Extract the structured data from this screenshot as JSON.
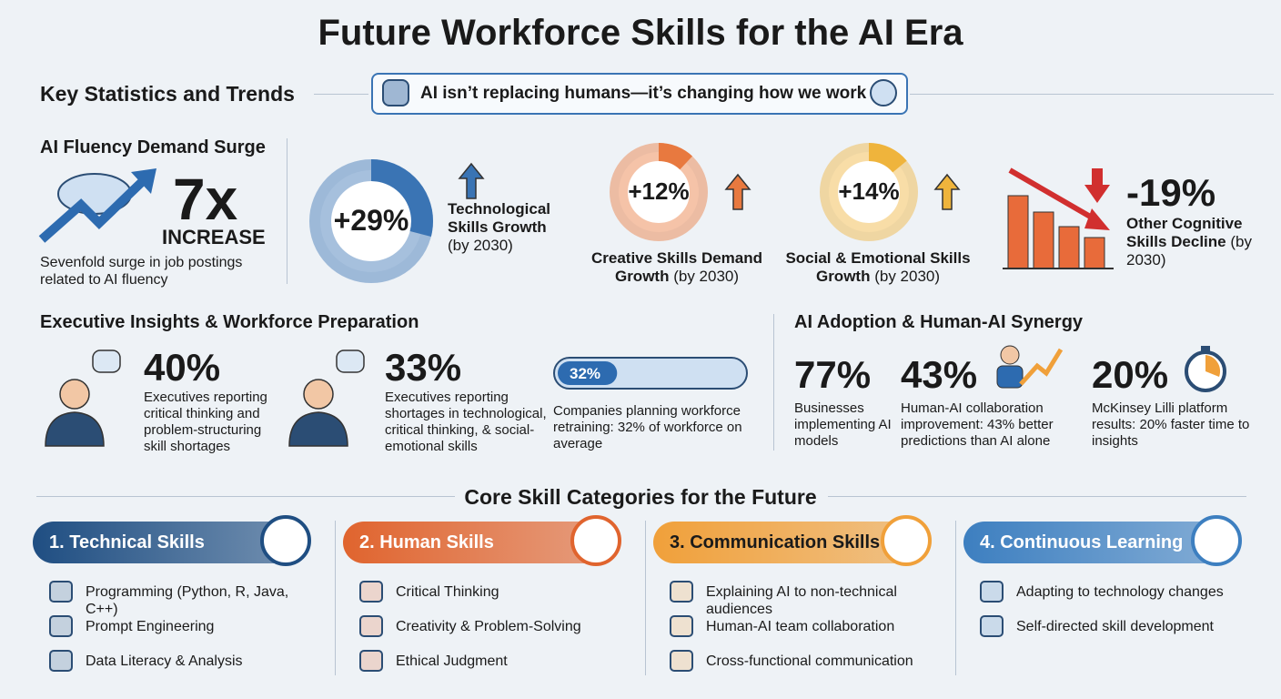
{
  "title": "Future Workforce Skills for the AI Era",
  "stats_heading": "Key Statistics and Trends",
  "banner": "AI isn’t replacing humans—it’s changing how we work",
  "fluency": {
    "heading": "AI Fluency Demand Surge",
    "stat": "7x",
    "stat_label": "INCREASE",
    "description": "Sevenfold surge in job postings related to AI fluency"
  },
  "growth": [
    {
      "value": 29,
      "label": "+29%",
      "name": "Technological Skills Growth",
      "note": "(by 2030)",
      "color": "#3a74b4"
    },
    {
      "value": 12,
      "label": "+12%",
      "name": "Creative Skills Demand Growth",
      "note": "(by 2030)",
      "color": "#e8793f"
    },
    {
      "value": 14,
      "label": "+14%",
      "name": "Social & Emotional Skills Growth",
      "note": "(by 2030)",
      "color": "#efb43c"
    }
  ],
  "decline": {
    "label": "-19%",
    "name": "Other Cognitive Skills Decline",
    "note": "(by 2030)"
  },
  "executive": {
    "heading": "Executive Insights & Workforce Preparation",
    "items": [
      {
        "stat": "40%",
        "text": "Executives reporting critical thinking and problem-structuring skill shortages"
      },
      {
        "stat": "33%",
        "text": "Executives reporting shortages in technological, critical thinking, & social-emotional skills"
      }
    ],
    "retraining": {
      "value": 32,
      "label": "32%",
      "text": "Companies planning workforce retraining: 32% of workforce on average"
    }
  },
  "adoption": {
    "heading": "AI Adoption & Human-AI Synergy",
    "items": [
      {
        "stat": "77%",
        "text": "Businesses implementing AI models"
      },
      {
        "stat": "43%",
        "text": "Human-AI collaboration improvement: 43% better predictions than AI alone"
      },
      {
        "stat": "20%",
        "text": "McKinsey Lilli platform results: 20% faster time to insights"
      }
    ]
  },
  "core": {
    "heading": "Core Skill Categories for the Future",
    "categories": [
      {
        "title": "1. Technical Skills",
        "color": "#1f4e82",
        "items": [
          "Programming (Python, R, Java, C++)",
          "Prompt Engineering",
          "Data Literacy & Analysis"
        ]
      },
      {
        "title": "2. Human Skills",
        "color": "#e0642e",
        "items": [
          "Critical Thinking",
          "Creativity & Problem-Solving",
          "Ethical Judgment"
        ]
      },
      {
        "title": "3. Communication Skills",
        "color": "#f0a03a",
        "items": [
          "Explaining AI to non-technical audiences",
          "Human-AI team collaboration",
          "Cross-functional communication"
        ]
      },
      {
        "title": "4. Continuous Learning",
        "color": "#3d7fc0",
        "items": [
          "Adapting to technology changes",
          "Self-directed skill development"
        ]
      }
    ]
  }
}
